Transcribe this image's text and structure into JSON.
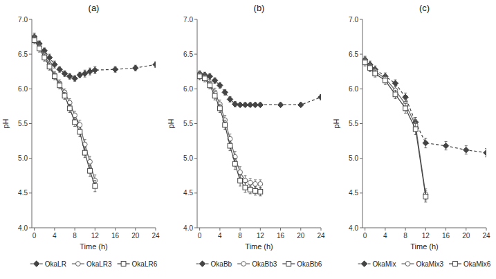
{
  "chart_data": [
    {
      "type": "line",
      "title": "(a)",
      "xlabel": "Time (h)",
      "ylabel": "pH",
      "xlim": [
        -0.5,
        24
      ],
      "xticks": [
        0,
        4,
        8,
        12,
        16,
        20,
        24
      ],
      "ylim": [
        {
          "value": 4.0,
          "label": "4.0"
        },
        {
          "value": 7.0,
          "label": "7.0"
        }
      ],
      "yticks": [
        {
          "value": 4.0,
          "label": "4.0"
        },
        4.5,
        {
          "value": 5.0,
          "label": "5.0"
        },
        5.5,
        {
          "value": 6.0,
          "label": "6.0"
        },
        6.5,
        {
          "value": 7.0,
          "label": "7.0"
        }
      ],
      "grid": false,
      "legend": "bottom",
      "series": [
        {
          "name": "OkaLR",
          "color": "#444444",
          "marker": "diamond",
          "line_style": "dashed",
          "x": [
            0,
            1,
            2,
            3,
            4,
            5,
            6,
            7,
            8,
            9,
            10,
            11,
            12,
            16,
            20,
            24
          ],
          "values": [
            6.75,
            6.65,
            6.55,
            6.45,
            6.35,
            6.28,
            6.22,
            6.18,
            6.15,
            6.2,
            6.22,
            6.25,
            6.27,
            6.28,
            6.3,
            6.35
          ],
          "errors": [
            0.05,
            0.04,
            0.04,
            0.05,
            0.05,
            0.04,
            0.04,
            0.04,
            0.04,
            0.04,
            0.05,
            0.05,
            0.05,
            0.04,
            0.04,
            0.04
          ]
        },
        {
          "name": "OkaLR3",
          "color": "#666666",
          "marker": "open-circle",
          "line_style": "solid",
          "x": [
            0,
            1,
            2,
            3,
            4,
            5,
            6,
            7,
            8,
            9,
            10,
            11,
            12
          ],
          "values": [
            6.72,
            6.6,
            6.48,
            6.35,
            6.2,
            6.08,
            5.95,
            5.8,
            5.62,
            5.48,
            5.2,
            4.95,
            4.68
          ],
          "errors": [
            0.05,
            0.05,
            0.05,
            0.05,
            0.05,
            0.05,
            0.05,
            0.06,
            0.06,
            0.07,
            0.07,
            0.08,
            0.08
          ]
        },
        {
          "name": "OkaLR6",
          "color": "#444444",
          "marker": "open-square",
          "line_style": "solid",
          "x": [
            0,
            1,
            2,
            3,
            4,
            5,
            6,
            7,
            8,
            9,
            10,
            11,
            12
          ],
          "values": [
            6.7,
            6.58,
            6.45,
            6.32,
            6.18,
            6.05,
            5.9,
            5.72,
            5.52,
            5.38,
            5.08,
            4.82,
            4.6
          ],
          "errors": [
            0.05,
            0.05,
            0.05,
            0.05,
            0.05,
            0.05,
            0.05,
            0.06,
            0.06,
            0.07,
            0.07,
            0.08,
            0.08
          ]
        }
      ]
    },
    {
      "type": "line",
      "title": "(b)",
      "xlabel": "Time (h)",
      "ylabel": "pH",
      "xlim": [
        -0.5,
        24
      ],
      "xticks": [
        0,
        4,
        8,
        12,
        16,
        20,
        24
      ],
      "ylim": [
        {
          "value": 4.0,
          "label": "4.0"
        },
        {
          "value": 7.0,
          "label": "7.0"
        }
      ],
      "yticks": [
        {
          "value": 4.0,
          "label": "4.0"
        },
        4.5,
        {
          "value": 5.0,
          "label": "5.0"
        },
        5.5,
        {
          "value": 6.0,
          "label": "6.0"
        },
        6.5,
        {
          "value": 7.0,
          "label": "7.0"
        }
      ],
      "grid": false,
      "legend": "bottom",
      "series": [
        {
          "name": "OkaBb",
          "color": "#444444",
          "marker": "diamond",
          "line_style": "dashed",
          "x": [
            0,
            1,
            2,
            3,
            4,
            5,
            6,
            7,
            8,
            9,
            10,
            11,
            12,
            16,
            20,
            24
          ],
          "values": [
            6.22,
            6.2,
            6.18,
            6.12,
            6.05,
            5.95,
            5.85,
            5.78,
            5.77,
            5.77,
            5.77,
            5.77,
            5.77,
            5.77,
            5.77,
            5.88
          ],
          "errors": [
            0.04,
            0.04,
            0.04,
            0.04,
            0.04,
            0.04,
            0.04,
            0.04,
            0.03,
            0.03,
            0.03,
            0.03,
            0.03,
            0.03,
            0.03,
            0.04
          ]
        },
        {
          "name": "OkaBb3",
          "color": "#666666",
          "marker": "open-circle",
          "line_style": "solid",
          "x": [
            0,
            1,
            2,
            3,
            4,
            5,
            6,
            7,
            8,
            9,
            10,
            11,
            12
          ],
          "values": [
            6.2,
            6.17,
            6.08,
            5.95,
            5.78,
            5.55,
            5.28,
            5.02,
            4.8,
            4.68,
            4.65,
            4.63,
            4.63
          ],
          "errors": [
            0.05,
            0.05,
            0.05,
            0.06,
            0.06,
            0.07,
            0.07,
            0.08,
            0.08,
            0.07,
            0.06,
            0.06,
            0.06
          ]
        },
        {
          "name": "OkaBb6",
          "color": "#444444",
          "marker": "open-square",
          "line_style": "solid",
          "x": [
            0,
            1,
            2,
            3,
            4,
            5,
            6,
            7,
            8,
            9,
            10,
            11,
            12
          ],
          "values": [
            6.18,
            6.15,
            6.05,
            5.9,
            5.72,
            5.48,
            5.18,
            4.92,
            4.68,
            4.58,
            4.55,
            4.53,
            4.52
          ],
          "errors": [
            0.05,
            0.05,
            0.05,
            0.06,
            0.06,
            0.07,
            0.07,
            0.08,
            0.08,
            0.07,
            0.06,
            0.06,
            0.06
          ]
        }
      ]
    },
    {
      "type": "line",
      "title": "(c)",
      "xlabel": "Time (h)",
      "ylabel": "pH",
      "xlim": [
        -0.5,
        24
      ],
      "xticks": [
        0,
        4,
        8,
        12,
        16,
        20,
        24
      ],
      "ylim": [
        {
          "value": 4.0,
          "label": "4.0"
        },
        {
          "value": 7.0,
          "label": "7.0"
        }
      ],
      "yticks": [
        {
          "value": 4.0,
          "label": "4.0"
        },
        4.5,
        {
          "value": 5.0,
          "label": "5.0"
        },
        5.5,
        {
          "value": 6.0,
          "label": "6.0"
        },
        6.5,
        {
          "value": 7.0,
          "label": "7.0"
        }
      ],
      "grid": false,
      "legend": "bottom",
      "series": [
        {
          "name": "OkaMix",
          "color": "#444444",
          "marker": "diamond",
          "line_style": "dashed",
          "x": [
            0,
            1,
            2,
            4,
            6,
            8,
            10,
            12,
            16,
            20,
            24
          ],
          "values": [
            6.42,
            6.35,
            6.28,
            6.18,
            6.08,
            5.88,
            5.52,
            5.22,
            5.18,
            5.12,
            5.08
          ],
          "errors": [
            0.05,
            0.05,
            0.05,
            0.05,
            0.05,
            0.06,
            0.07,
            0.07,
            0.06,
            0.06,
            0.06
          ]
        },
        {
          "name": "OkaMix3",
          "color": "#666666",
          "marker": "open-circle",
          "line_style": "solid",
          "x": [
            0,
            1,
            2,
            4,
            6,
            8,
            10,
            12
          ],
          "values": [
            6.4,
            6.32,
            6.25,
            6.15,
            5.98,
            5.78,
            5.48,
            4.48
          ],
          "errors": [
            0.05,
            0.05,
            0.05,
            0.06,
            0.06,
            0.07,
            0.08,
            0.08
          ]
        },
        {
          "name": "OkaMix6",
          "color": "#444444",
          "marker": "open-square",
          "line_style": "solid",
          "x": [
            0,
            1,
            2,
            4,
            6,
            8,
            10,
            12
          ],
          "values": [
            6.38,
            6.3,
            6.22,
            6.12,
            5.92,
            5.72,
            5.42,
            4.45
          ],
          "errors": [
            0.05,
            0.05,
            0.05,
            0.06,
            0.06,
            0.07,
            0.08,
            0.08
          ]
        }
      ]
    }
  ]
}
